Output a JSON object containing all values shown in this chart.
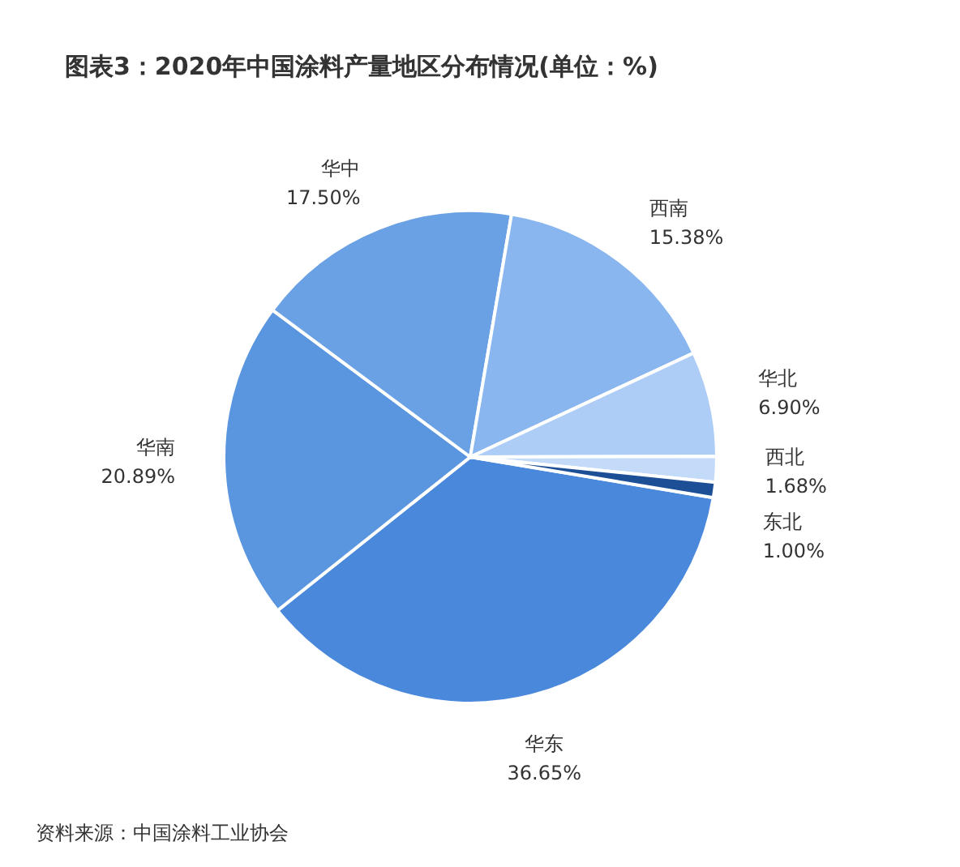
{
  "chart_data": {
    "type": "pie",
    "title": "图表3：2020年中国涂料产量地区分布情况(单位：%)",
    "categories": [
      "华东",
      "华南",
      "华中",
      "西南",
      "华北",
      "西北",
      "东北"
    ],
    "values": [
      36.65,
      20.89,
      17.5,
      15.38,
      6.9,
      1.68,
      1.0
    ],
    "value_labels": [
      "36.65%",
      "20.89%",
      "17.50%",
      "15.38%",
      "6.90%",
      "1.68%",
      "1.00%"
    ],
    "colors": [
      "#4a88dc",
      "#5a95e0",
      "#6aa0e4",
      "#8ab6f0",
      "#aecdf6",
      "#c3dbf8",
      "#1c4f96"
    ],
    "annotations": [
      "资料来源：中国涂料工业协会"
    ]
  }
}
